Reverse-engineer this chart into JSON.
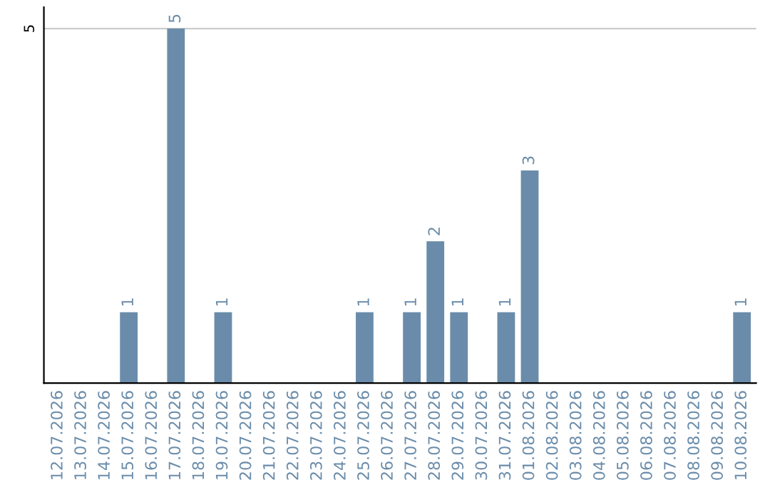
{
  "chart_data": {
    "type": "bar",
    "categories": [
      "12.07.2026",
      "13.07.2026",
      "14.07.2026",
      "15.07.2026",
      "16.07.2026",
      "17.07.2026",
      "18.07.2026",
      "19.07.2026",
      "20.07.2026",
      "21.07.2026",
      "22.07.2026",
      "23.07.2026",
      "24.07.2026",
      "25.07.2026",
      "26.07.2026",
      "27.07.2026",
      "28.07.2026",
      "29.07.2026",
      "30.07.2026",
      "31.07.2026",
      "01.08.2026",
      "02.08.2026",
      "03.08.2026",
      "04.08.2026",
      "05.08.2026",
      "06.08.2026",
      "07.08.2026",
      "08.08.2026",
      "09.08.2026",
      "10.08.2026"
    ],
    "values": [
      0,
      0,
      0,
      1,
      0,
      5,
      0,
      1,
      0,
      0,
      0,
      0,
      0,
      1,
      0,
      1,
      2,
      1,
      0,
      1,
      3,
      0,
      0,
      0,
      0,
      0,
      0,
      0,
      0,
      1
    ],
    "value_labels": [
      null,
      null,
      null,
      "1",
      null,
      "5",
      null,
      "1",
      null,
      null,
      null,
      null,
      null,
      "1",
      null,
      "1",
      "2",
      "1",
      null,
      "1",
      "3",
      null,
      null,
      null,
      null,
      null,
      null,
      null,
      null,
      "1"
    ],
    "color": "#6a8caa",
    "ylim": [
      0,
      5.3
    ],
    "yticks": [
      5
    ],
    "grid": "y"
  }
}
